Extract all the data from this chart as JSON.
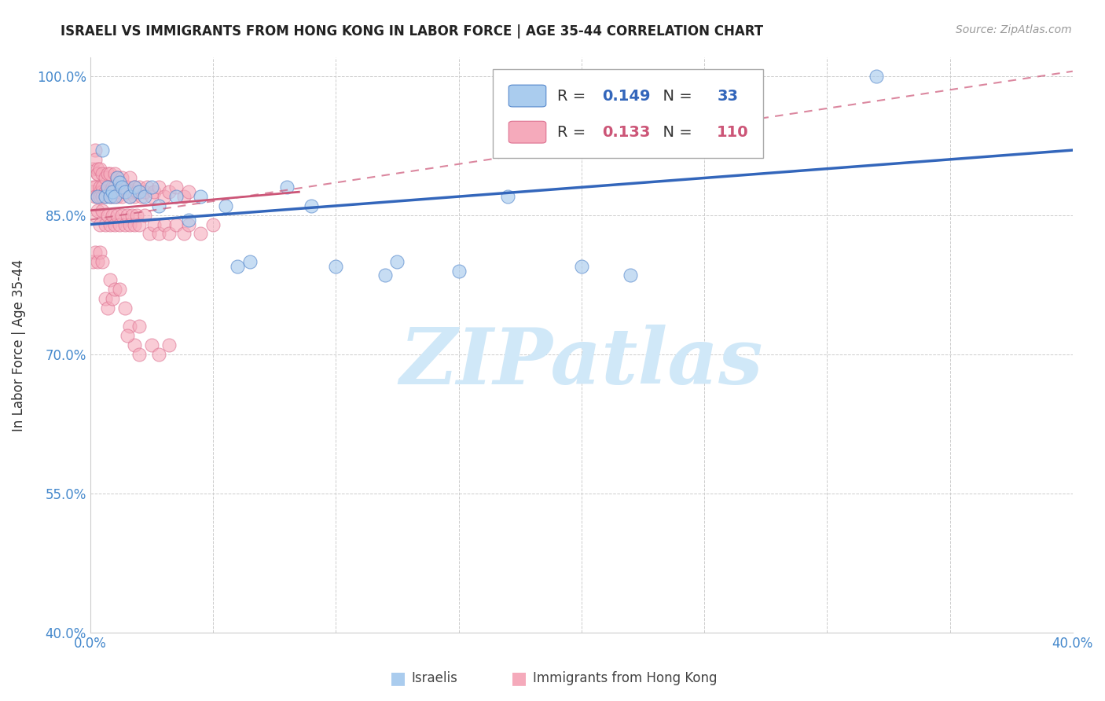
{
  "title": "ISRAELI VS IMMIGRANTS FROM HONG KONG IN LABOR FORCE | AGE 35-44 CORRELATION CHART",
  "source": "Source: ZipAtlas.com",
  "ylabel": "In Labor Force | Age 35-44",
  "xlim": [
    0.0,
    0.4
  ],
  "ylim": [
    0.4,
    1.02
  ],
  "xticks": [
    0.0,
    0.05,
    0.1,
    0.15,
    0.2,
    0.25,
    0.3,
    0.35,
    0.4
  ],
  "xticklabels": [
    "0.0%",
    "",
    "",
    "",
    "",
    "",
    "",
    "",
    "40.0%"
  ],
  "yticks": [
    0.4,
    0.55,
    0.7,
    0.85,
    1.0
  ],
  "yticklabels": [
    "40.0%",
    "55.0%",
    "70.0%",
    "85.0%",
    "100.0%"
  ],
  "legend_R_blue": "0.149",
  "legend_N_blue": "33",
  "legend_R_pink": "0.133",
  "legend_N_pink": "110",
  "blue_fill": "#aaccee",
  "blue_edge": "#5588cc",
  "pink_fill": "#f5aabb",
  "pink_edge": "#dd7090",
  "blue_line_color": "#3366bb",
  "pink_line_color": "#cc5577",
  "grid_color": "#cccccc",
  "axis_tick_color": "#4488cc",
  "title_color": "#222222",
  "source_color": "#999999",
  "ylabel_color": "#333333",
  "watermark_text": "ZIPatlas",
  "watermark_color": "#d0e8f8",
  "blue_trendline": [
    0.0,
    0.84,
    0.4,
    0.92
  ],
  "pink_trendline_solid": [
    0.0,
    0.855,
    0.085,
    0.875
  ],
  "pink_trendline_dashed": [
    0.0,
    0.845,
    0.4,
    1.005
  ],
  "israelis_x": [
    0.003,
    0.005,
    0.006,
    0.007,
    0.008,
    0.009,
    0.01,
    0.011,
    0.012,
    0.013,
    0.014,
    0.016,
    0.018,
    0.02,
    0.022,
    0.025,
    0.028,
    0.035,
    0.04,
    0.045,
    0.055,
    0.06,
    0.065,
    0.09,
    0.1,
    0.12,
    0.15,
    0.2,
    0.22,
    0.32,
    0.125,
    0.17,
    0.08
  ],
  "israelis_y": [
    0.87,
    0.92,
    0.87,
    0.88,
    0.87,
    0.875,
    0.87,
    0.89,
    0.885,
    0.88,
    0.875,
    0.87,
    0.88,
    0.875,
    0.87,
    0.88,
    0.86,
    0.87,
    0.845,
    0.87,
    0.86,
    0.795,
    0.8,
    0.86,
    0.795,
    0.785,
    0.79,
    0.795,
    0.785,
    1.0,
    0.8,
    0.87,
    0.88
  ],
  "hk_x": [
    0.001,
    0.001,
    0.001,
    0.002,
    0.002,
    0.002,
    0.002,
    0.003,
    0.003,
    0.003,
    0.003,
    0.004,
    0.004,
    0.004,
    0.004,
    0.005,
    0.005,
    0.005,
    0.005,
    0.006,
    0.006,
    0.006,
    0.007,
    0.007,
    0.007,
    0.008,
    0.008,
    0.008,
    0.009,
    0.009,
    0.01,
    0.01,
    0.01,
    0.011,
    0.011,
    0.012,
    0.012,
    0.013,
    0.013,
    0.014,
    0.015,
    0.015,
    0.016,
    0.016,
    0.017,
    0.018,
    0.018,
    0.019,
    0.02,
    0.021,
    0.022,
    0.023,
    0.025,
    0.026,
    0.028,
    0.03,
    0.032,
    0.035,
    0.038,
    0.04,
    0.002,
    0.003,
    0.004,
    0.005,
    0.006,
    0.007,
    0.008,
    0.009,
    0.01,
    0.011,
    0.012,
    0.013,
    0.014,
    0.015,
    0.016,
    0.017,
    0.018,
    0.019,
    0.02,
    0.022,
    0.024,
    0.026,
    0.028,
    0.03,
    0.032,
    0.035,
    0.038,
    0.04,
    0.045,
    0.05,
    0.001,
    0.002,
    0.003,
    0.004,
    0.005,
    0.006,
    0.007,
    0.008,
    0.009,
    0.01,
    0.012,
    0.014,
    0.016,
    0.018,
    0.02,
    0.015,
    0.02,
    0.025,
    0.028,
    0.032
  ],
  "hk_y": [
    0.88,
    0.9,
    0.875,
    0.92,
    0.88,
    0.91,
    0.87,
    0.895,
    0.9,
    0.87,
    0.895,
    0.9,
    0.875,
    0.88,
    0.87,
    0.895,
    0.875,
    0.88,
    0.87,
    0.89,
    0.875,
    0.87,
    0.895,
    0.875,
    0.88,
    0.87,
    0.895,
    0.875,
    0.88,
    0.87,
    0.895,
    0.875,
    0.88,
    0.89,
    0.87,
    0.88,
    0.875,
    0.89,
    0.87,
    0.88,
    0.88,
    0.875,
    0.89,
    0.87,
    0.875,
    0.88,
    0.87,
    0.875,
    0.88,
    0.87,
    0.875,
    0.88,
    0.87,
    0.875,
    0.88,
    0.87,
    0.875,
    0.88,
    0.87,
    0.875,
    0.85,
    0.855,
    0.84,
    0.855,
    0.84,
    0.85,
    0.84,
    0.85,
    0.84,
    0.85,
    0.84,
    0.85,
    0.84,
    0.85,
    0.84,
    0.85,
    0.84,
    0.85,
    0.84,
    0.85,
    0.83,
    0.84,
    0.83,
    0.84,
    0.83,
    0.84,
    0.83,
    0.84,
    0.83,
    0.84,
    0.8,
    0.81,
    0.8,
    0.81,
    0.8,
    0.76,
    0.75,
    0.78,
    0.76,
    0.77,
    0.77,
    0.75,
    0.73,
    0.71,
    0.7,
    0.72,
    0.73,
    0.71,
    0.7,
    0.71
  ]
}
